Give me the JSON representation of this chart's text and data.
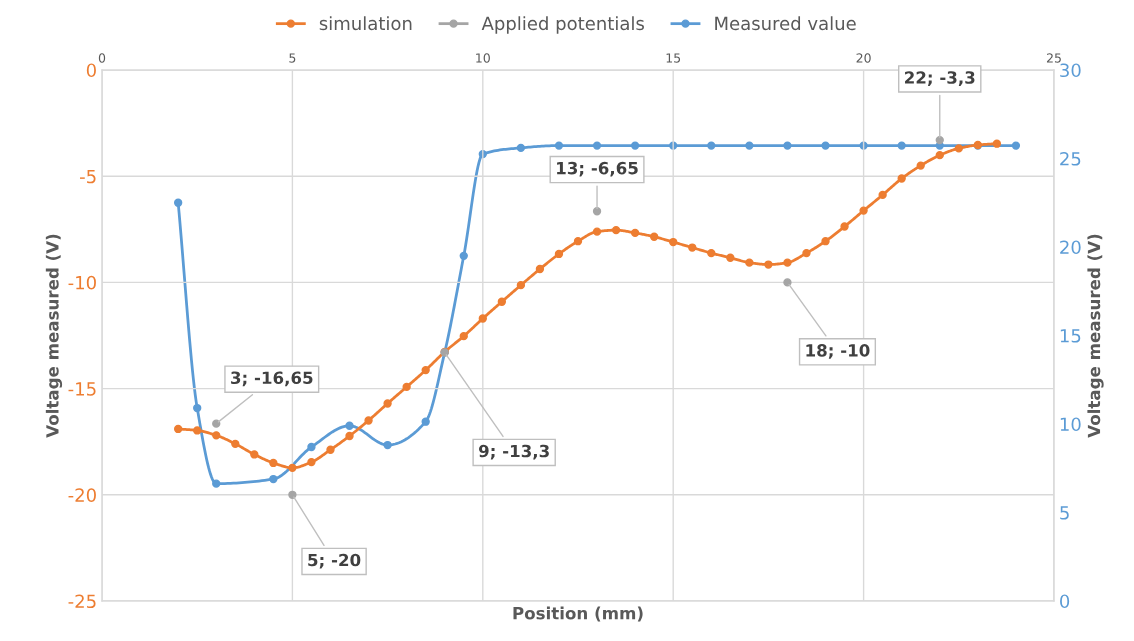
{
  "chart_data": {
    "type": "line",
    "xlabel": "Position (mm)",
    "ylabel": "Voltage measured (V)",
    "y2label": "Voltage measured (V)",
    "xlim": [
      0,
      25
    ],
    "xticks": [
      0,
      5,
      10,
      15,
      20,
      25
    ],
    "ylim": [
      -25,
      0
    ],
    "yticks": [
      -25,
      -20,
      -15,
      -10,
      -5,
      0
    ],
    "y2lim": [
      0,
      30
    ],
    "y2ticks": [
      0,
      5,
      10,
      15,
      20,
      25,
      30
    ],
    "grid": true,
    "legend": "top",
    "marker": "circle",
    "line_style": "solid",
    "series": [
      {
        "name": "simulation",
        "color": "#ed7d31",
        "x": [
          2,
          2.5,
          3,
          3.5,
          4,
          4.5,
          5,
          5.5,
          6,
          6.5,
          7,
          7.5,
          8,
          8.5,
          9,
          9.5,
          10,
          10.5,
          11,
          11.5,
          12,
          12.5,
          13,
          13.5,
          14,
          14.5,
          15,
          15.5,
          16,
          16.5,
          17,
          17.5,
          18,
          18.5,
          19,
          19.5,
          20,
          20.5,
          21,
          21.5,
          22,
          22.5,
          23,
          23.5
        ],
        "values": [
          -16.9,
          -16.97,
          -17.2,
          -17.6,
          -18.1,
          -18.5,
          -18.73,
          -18.46,
          -17.88,
          -17.23,
          -16.5,
          -15.7,
          -14.92,
          -14.13,
          -13.27,
          -12.53,
          -11.7,
          -10.91,
          -10.13,
          -9.37,
          -8.66,
          -8.06,
          -7.61,
          -7.54,
          -7.67,
          -7.85,
          -8.1,
          -8.36,
          -8.62,
          -8.84,
          -9.07,
          -9.16,
          -9.07,
          -8.62,
          -8.06,
          -7.37,
          -6.62,
          -5.88,
          -5.11,
          -4.5,
          -4.01,
          -3.69,
          -3.53,
          -3.47
        ]
      },
      {
        "name": "Applied potentials",
        "color": "#a5a5a5",
        "type": "scatter",
        "x": [
          3,
          5,
          9,
          13,
          18,
          22
        ],
        "values": [
          -16.65,
          -20,
          -13.3,
          -6.65,
          -10,
          -3.3
        ],
        "value_labels": [
          "3; -16,65",
          "5; -20",
          "9; -13,3",
          "13; -6,65",
          "18; -10",
          "22; -3,3"
        ]
      },
      {
        "name": "Measured value",
        "color": "#5b9bd5",
        "axis": "y2",
        "x": [
          2,
          2.5,
          3,
          4.5,
          5.5,
          6.5,
          7.5,
          8.5,
          9,
          9.5,
          10,
          11,
          12,
          13,
          14,
          15,
          16,
          17,
          18,
          19,
          20,
          21,
          22,
          23,
          24
        ],
        "values": [
          22.5,
          10.9,
          6.63,
          6.89,
          8.7,
          9.9,
          8.81,
          10.13,
          14.05,
          19.5,
          25.25,
          25.6,
          25.73,
          25.73,
          25.73,
          25.73,
          25.73,
          25.73,
          25.73,
          25.73,
          25.73,
          25.73,
          25.73,
          25.73,
          25.73
        ]
      }
    ]
  }
}
